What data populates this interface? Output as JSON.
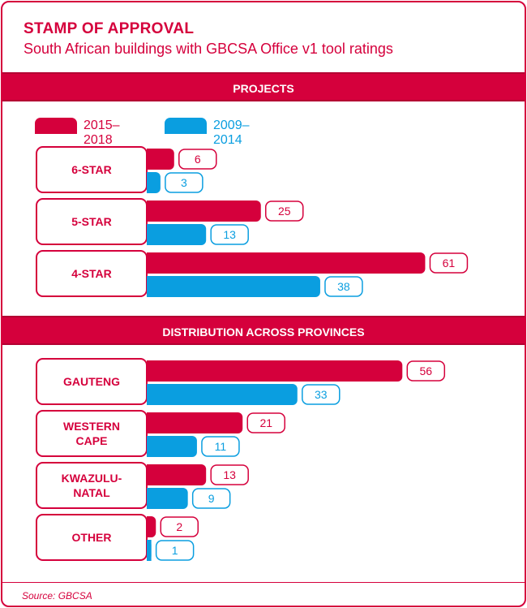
{
  "header": {
    "title": "STAMP OF APPROVAL",
    "subtitle": "South African buildings with GBCSA Office v1 tool ratings"
  },
  "colors": {
    "accent": "#d5003c",
    "secondary": "#0a9ee0"
  },
  "source": "Source: GBCSA",
  "chart_data": [
    {
      "type": "bar",
      "title": "PROJECTS",
      "categories": [
        "6-STAR",
        "5-STAR",
        "4-STAR"
      ],
      "series": [
        {
          "name": "2015–2018",
          "color": "#d5003c",
          "values": [
            6,
            25,
            61
          ]
        },
        {
          "name": "2009–2014",
          "color": "#0a9ee0",
          "values": [
            3,
            13,
            38
          ]
        }
      ]
    },
    {
      "type": "bar",
      "title": "DISTRIBUTION ACROSS PROVINCES",
      "categories": [
        "GAUTENG",
        "WESTERN\nCAPE",
        "KWAZULU-\nNATAL",
        "OTHER"
      ],
      "series": [
        {
          "name": "2015–2018",
          "color": "#d5003c",
          "values": [
            56,
            21,
            13,
            2
          ]
        },
        {
          "name": "2009–2014",
          "color": "#0a9ee0",
          "values": [
            33,
            11,
            9,
            1
          ]
        }
      ]
    }
  ]
}
